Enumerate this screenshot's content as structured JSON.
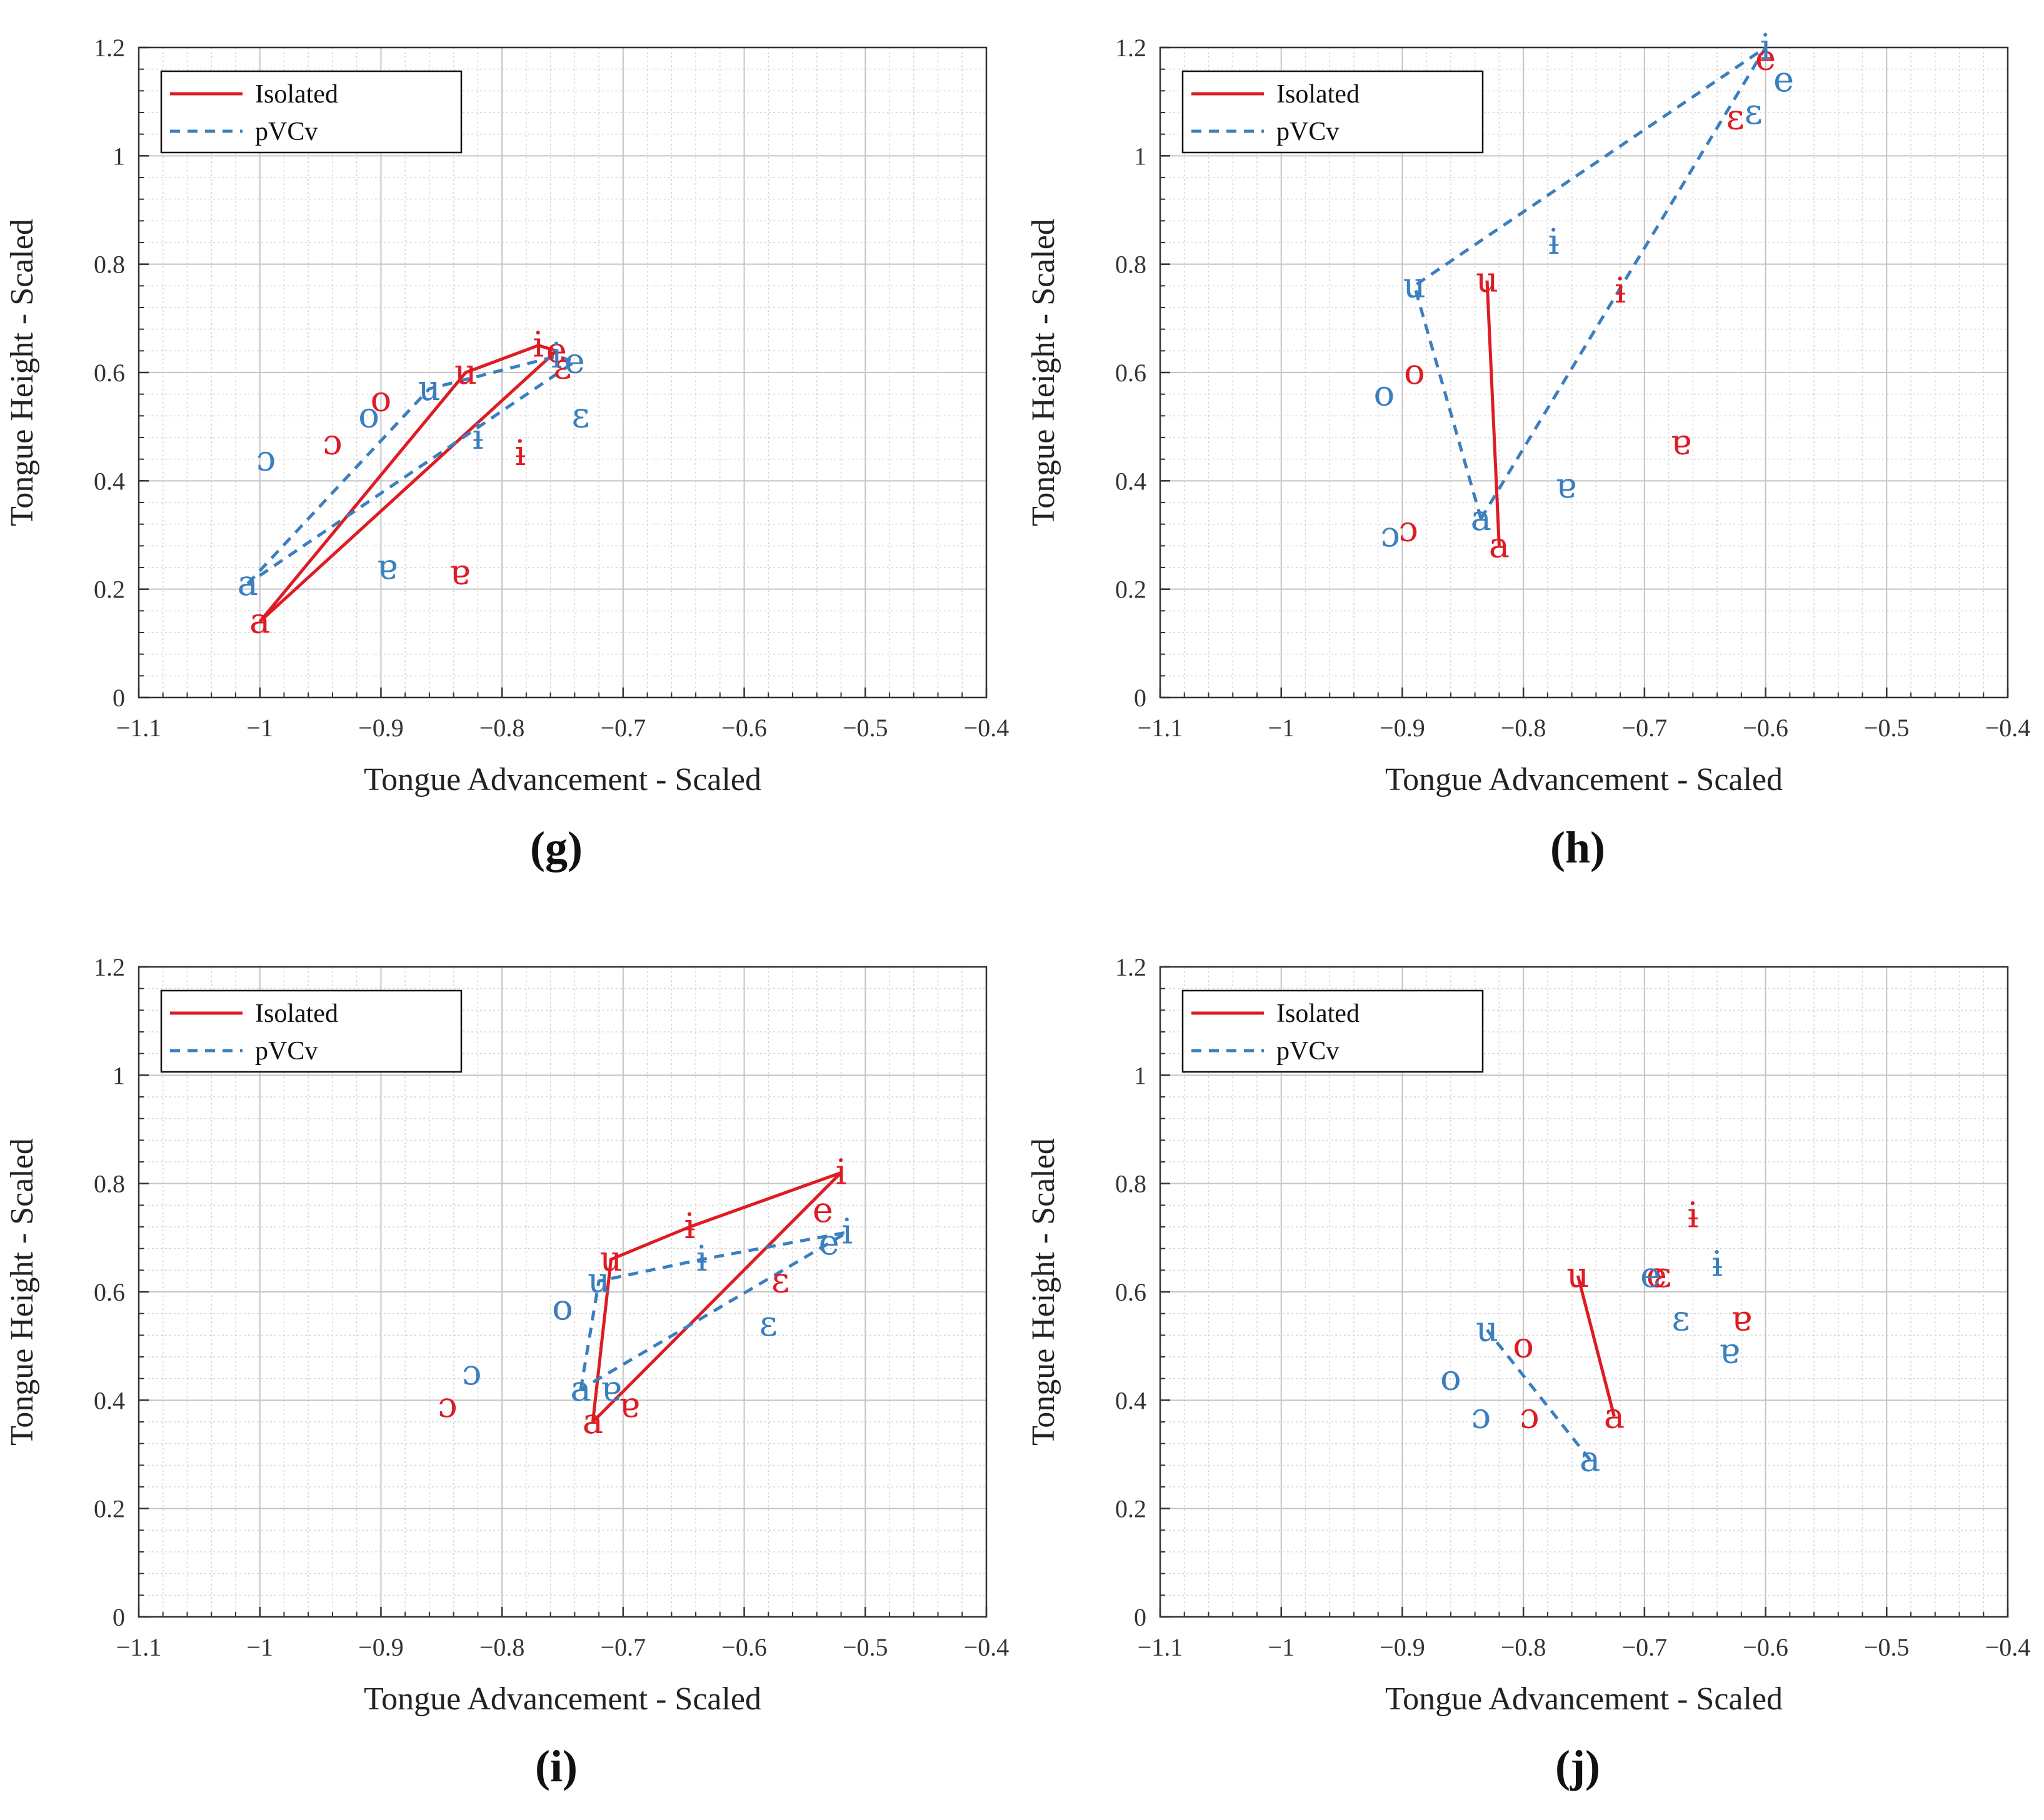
{
  "figure": {
    "colors": {
      "isolated": "#dd1c24",
      "pvcv": "#3a7fbf",
      "grid": "#d6d6d6",
      "axis": "#333333"
    }
  },
  "chart_data": [
    {
      "type": "scatter",
      "panel_label": "(g)",
      "xlabel": "Tongue Advancement - Scaled",
      "ylabel": "Tongue Height - Scaled",
      "xlim": [
        -1.1,
        -0.4
      ],
      "ylim": [
        0,
        1.2
      ],
      "xticks": [
        -1.1,
        -1,
        -0.9,
        -0.8,
        -0.7,
        -0.6,
        -0.5,
        -0.4
      ],
      "xtick_labels": [
        "−1.1",
        "−1",
        "−0.9",
        "−0.8",
        "−0.7",
        "−0.6",
        "−0.5",
        "−0.4"
      ],
      "yticks": [
        0,
        0.2,
        0.4,
        0.6,
        0.8,
        1,
        1.2
      ],
      "ytick_labels": [
        "0",
        "0.2",
        "0.4",
        "0.6",
        "0.8",
        "1",
        "1.2"
      ],
      "grid": true,
      "legend": {
        "position": "top-left",
        "entries": [
          "Isolated",
          "pVCv"
        ]
      },
      "series": [
        {
          "name": "Isolated",
          "style": "solid",
          "points": [
            {
              "label": "i",
              "x": -0.77,
              "y": 0.65
            },
            {
              "label": "e",
              "x": -0.755,
              "y": 0.64
            },
            {
              "label": "ɛ",
              "x": -0.75,
              "y": 0.61
            },
            {
              "label": "u",
              "x": -0.83,
              "y": 0.6
            },
            {
              "label": "o",
              "x": -0.9,
              "y": 0.55
            },
            {
              "label": "ɔ",
              "x": -0.94,
              "y": 0.47
            },
            {
              "label": "ɨ",
              "x": -0.785,
              "y": 0.45
            },
            {
              "label": "ɐ",
              "x": -0.835,
              "y": 0.23
            },
            {
              "label": "a",
              "x": -1.0,
              "y": 0.14
            }
          ],
          "hull": [
            "a",
            "u",
            "i",
            "e",
            "a"
          ]
        },
        {
          "name": "pVCv",
          "style": "dashed",
          "points": [
            {
              "label": "i",
              "x": -0.755,
              "y": 0.63
            },
            {
              "label": "e",
              "x": -0.74,
              "y": 0.62
            },
            {
              "label": "ɛ",
              "x": -0.735,
              "y": 0.52
            },
            {
              "label": "u",
              "x": -0.86,
              "y": 0.57
            },
            {
              "label": "o",
              "x": -0.91,
              "y": 0.52
            },
            {
              "label": "ɔ",
              "x": -0.995,
              "y": 0.44
            },
            {
              "label": "ɨ",
              "x": -0.82,
              "y": 0.48
            },
            {
              "label": "ɐ",
              "x": -0.895,
              "y": 0.24
            },
            {
              "label": "a",
              "x": -1.01,
              "y": 0.21
            }
          ],
          "hull": [
            "a",
            "u",
            "i",
            "e",
            "a"
          ]
        }
      ]
    },
    {
      "type": "scatter",
      "panel_label": "(h)",
      "xlabel": "Tongue Advancement - Scaled",
      "ylabel": "Tongue Height - Scaled",
      "xlim": [
        -1.1,
        -0.4
      ],
      "ylim": [
        0,
        1.2
      ],
      "xticks": [
        -1.1,
        -1,
        -0.9,
        -0.8,
        -0.7,
        -0.6,
        -0.5,
        -0.4
      ],
      "xtick_labels": [
        "−1.1",
        "−1",
        "−0.9",
        "−0.8",
        "−0.7",
        "−0.6",
        "−0.5",
        "−0.4"
      ],
      "yticks": [
        0,
        0.2,
        0.4,
        0.6,
        0.8,
        1,
        1.2
      ],
      "ytick_labels": [
        "0",
        "0.2",
        "0.4",
        "0.6",
        "0.8",
        "1",
        "1.2"
      ],
      "grid": true,
      "legend": {
        "position": "top-left",
        "entries": [
          "Isolated",
          "pVCv"
        ]
      },
      "series": [
        {
          "name": "Isolated",
          "style": "solid",
          "points": [
            {
              "label": "e",
              "x": -0.6,
              "y": 1.18
            },
            {
              "label": "ɛ",
              "x": -0.625,
              "y": 1.07
            },
            {
              "label": "u",
              "x": -0.83,
              "y": 0.77
            },
            {
              "label": "ɨ",
              "x": -0.72,
              "y": 0.75
            },
            {
              "label": "o",
              "x": -0.89,
              "y": 0.6
            },
            {
              "label": "ɐ",
              "x": -0.67,
              "y": 0.47
            },
            {
              "label": "ɔ",
              "x": -0.895,
              "y": 0.31
            },
            {
              "label": "a",
              "x": -0.82,
              "y": 0.28
            }
          ],
          "hull": [
            "a",
            "u"
          ]
        },
        {
          "name": "pVCv",
          "style": "dashed",
          "points": [
            {
              "label": "i",
              "x": -0.6,
              "y": 1.2
            },
            {
              "label": "e",
              "x": -0.585,
              "y": 1.14
            },
            {
              "label": "ɛ",
              "x": -0.61,
              "y": 1.08
            },
            {
              "label": "ɨ",
              "x": -0.775,
              "y": 0.84
            },
            {
              "label": "u",
              "x": -0.89,
              "y": 0.76
            },
            {
              "label": "o",
              "x": -0.915,
              "y": 0.56
            },
            {
              "label": "ɐ",
              "x": -0.765,
              "y": 0.39
            },
            {
              "label": "a",
              "x": -0.835,
              "y": 0.33
            },
            {
              "label": "ɔ",
              "x": -0.91,
              "y": 0.3
            }
          ],
          "hull": [
            "a",
            "u",
            "i",
            "a"
          ]
        }
      ]
    },
    {
      "type": "scatter",
      "panel_label": "(i)",
      "xlabel": "Tongue Advancement - Scaled",
      "ylabel": "Tongue Height - Scaled",
      "xlim": [
        -1.1,
        -0.4
      ],
      "ylim": [
        0,
        1.2
      ],
      "xticks": [
        -1.1,
        -1,
        -0.9,
        -0.8,
        -0.7,
        -0.6,
        -0.5,
        -0.4
      ],
      "xtick_labels": [
        "−1.1",
        "−1",
        "−0.9",
        "−0.8",
        "−0.7",
        "−0.6",
        "−0.5",
        "−0.4"
      ],
      "yticks": [
        0,
        0.2,
        0.4,
        0.6,
        0.8,
        1,
        1.2
      ],
      "ytick_labels": [
        "0",
        "0.2",
        "0.4",
        "0.6",
        "0.8",
        "1",
        "1.2"
      ],
      "grid": true,
      "legend": {
        "position": "top-left",
        "entries": [
          "Isolated",
          "pVCv"
        ]
      },
      "series": [
        {
          "name": "Isolated",
          "style": "solid",
          "points": [
            {
              "label": "i",
              "x": -0.52,
              "y": 0.82
            },
            {
              "label": "e",
              "x": -0.535,
              "y": 0.75
            },
            {
              "label": "ɨ",
              "x": -0.645,
              "y": 0.72
            },
            {
              "label": "u",
              "x": -0.71,
              "y": 0.66
            },
            {
              "label": "ɛ",
              "x": -0.57,
              "y": 0.62
            },
            {
              "label": "o",
              "x": -0.75,
              "y": 0.57
            },
            {
              "label": "ɐ",
              "x": -0.695,
              "y": 0.39
            },
            {
              "label": "ɔ",
              "x": -0.845,
              "y": 0.39
            },
            {
              "label": "a",
              "x": -0.725,
              "y": 0.36
            }
          ],
          "hull": [
            "a",
            "u",
            "ɨ",
            "i",
            "a"
          ]
        },
        {
          "name": "pVCv",
          "style": "dashed",
          "points": [
            {
              "label": "i",
              "x": -0.515,
              "y": 0.71
            },
            {
              "label": "e",
              "x": -0.53,
              "y": 0.69
            },
            {
              "label": "ɨ",
              "x": -0.635,
              "y": 0.66
            },
            {
              "label": "u",
              "x": -0.72,
              "y": 0.62
            },
            {
              "label": "o",
              "x": -0.75,
              "y": 0.57
            },
            {
              "label": "ɛ",
              "x": -0.58,
              "y": 0.54
            },
            {
              "label": "ɔ",
              "x": -0.825,
              "y": 0.45
            },
            {
              "label": "ɐ",
              "x": -0.71,
              "y": 0.42
            },
            {
              "label": "a",
              "x": -0.735,
              "y": 0.42
            }
          ],
          "hull": [
            "a",
            "u",
            "ɨ",
            "i",
            "e",
            "a"
          ]
        }
      ]
    },
    {
      "type": "scatter",
      "panel_label": "(j)",
      "xlabel": "Tongue Advancement - Scaled",
      "ylabel": "Tongue Height - Scaled",
      "xlim": [
        -1.1,
        -0.4
      ],
      "ylim": [
        0,
        1.2
      ],
      "xticks": [
        -1.1,
        -1,
        -0.9,
        -0.8,
        -0.7,
        -0.6,
        -0.5,
        -0.4
      ],
      "xtick_labels": [
        "−1.1",
        "−1",
        "−0.9",
        "−0.8",
        "−0.7",
        "−0.6",
        "−0.5",
        "−0.4"
      ],
      "yticks": [
        0,
        0.2,
        0.4,
        0.6,
        0.8,
        1,
        1.2
      ],
      "ytick_labels": [
        "0",
        "0.2",
        "0.4",
        "0.6",
        "0.8",
        "1",
        "1.2"
      ],
      "grid": true,
      "legend": {
        "position": "top-left",
        "entries": [
          "Isolated",
          "pVCv"
        ]
      },
      "series": [
        {
          "name": "Isolated",
          "style": "solid",
          "points": [
            {
              "label": "ɨ",
              "x": -0.66,
              "y": 0.74
            },
            {
              "label": "u",
              "x": -0.755,
              "y": 0.63
            },
            {
              "label": "e",
              "x": -0.69,
              "y": 0.63
            },
            {
              "label": "ɛ",
              "x": -0.685,
              "y": 0.63
            },
            {
              "label": "ɐ",
              "x": -0.62,
              "y": 0.55
            },
            {
              "label": "o",
              "x": -0.8,
              "y": 0.5
            },
            {
              "label": "a",
              "x": -0.725,
              "y": 0.37
            },
            {
              "label": "ɔ",
              "x": -0.795,
              "y": 0.37
            }
          ],
          "hull": [
            "a",
            "u"
          ]
        },
        {
          "name": "pVCv",
          "style": "dashed",
          "points": [
            {
              "label": "ɨ",
              "x": -0.64,
              "y": 0.65
            },
            {
              "label": "e",
              "x": -0.695,
              "y": 0.63
            },
            {
              "label": "ɛ",
              "x": -0.67,
              "y": 0.55
            },
            {
              "label": "u",
              "x": -0.83,
              "y": 0.53
            },
            {
              "label": "ɐ",
              "x": -0.63,
              "y": 0.49
            },
            {
              "label": "o",
              "x": -0.86,
              "y": 0.44
            },
            {
              "label": "ɔ",
              "x": -0.835,
              "y": 0.37
            },
            {
              "label": "a",
              "x": -0.745,
              "y": 0.29
            }
          ],
          "hull": [
            "a",
            "u"
          ]
        }
      ]
    }
  ]
}
